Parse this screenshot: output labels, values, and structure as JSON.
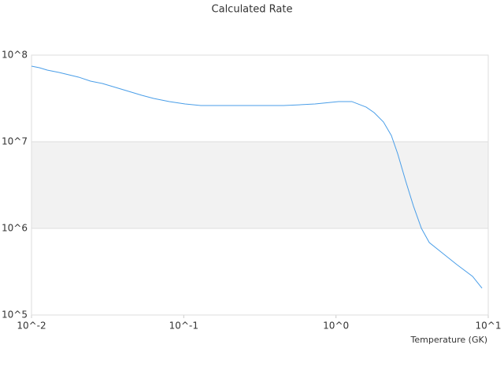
{
  "chart_data": {
    "type": "line",
    "title": "Calculated Rate",
    "x_label": "Temperature (GK)",
    "xscale": "log",
    "yscale": "log",
    "grid": true,
    "grid_bands": true,
    "xlim": [
      0.01,
      10
    ],
    "ylim": [
      100000,
      100000000
    ],
    "xticks": [
      {
        "value": 0.01,
        "label": "10^-2"
      },
      {
        "value": 0.1,
        "label": "10^-1"
      },
      {
        "value": 1,
        "label": "10^0"
      },
      {
        "value": 10,
        "label": "10^1"
      }
    ],
    "yticks": [
      {
        "value": 100000,
        "label": "10^5"
      },
      {
        "value": 1000000,
        "label": "10^6"
      },
      {
        "value": 10000000,
        "label": "10^7"
      },
      {
        "value": 100000000,
        "label": "10^8"
      }
    ],
    "x": [
      0.01,
      0.01127,
      0.01268,
      0.01517,
      0.0204,
      0.0244,
      0.0292,
      0.0371,
      0.0418,
      0.053,
      0.0634,
      0.0804,
      0.102,
      0.1294,
      0.452,
      0.574,
      0.728,
      1.04,
      1.27,
      1.58,
      1.78,
      2.05,
      2.31,
      2.54,
      2.87,
      3.23,
      3.64,
      4.1,
      4.9,
      6.22,
      7.89,
      9.1
    ],
    "series": [
      {
        "color": "#4a9ee8",
        "values": [
          74600000,
          71600000,
          67200000,
          63100000,
          55700000,
          50100000,
          47100000,
          41500000,
          39000000,
          34400000,
          31600000,
          29100000,
          27300000,
          26200000,
          26200000,
          26700000,
          27300000,
          29100000,
          29100000,
          25100000,
          21700000,
          16900000,
          11800000,
          7310000,
          3510000,
          1800000,
          1000000,
          686000,
          534000,
          382000,
          279000,
          204000
        ]
      }
    ]
  }
}
